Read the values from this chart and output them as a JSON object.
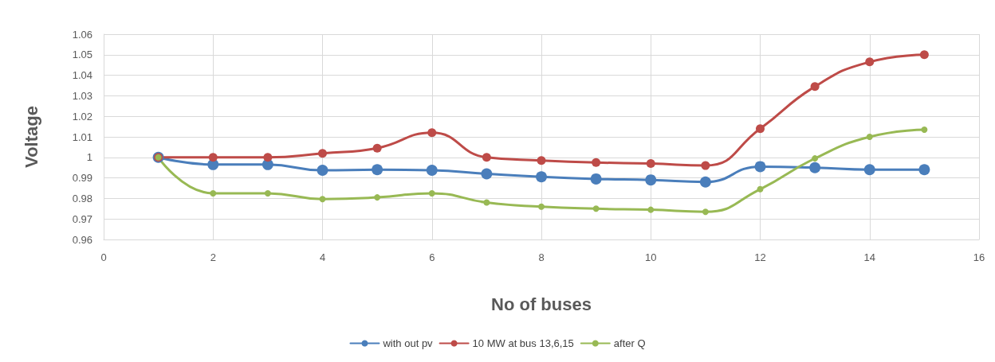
{
  "chart_data": {
    "type": "line",
    "xlabel": "No of buses",
    "ylabel": "Voltage",
    "x": [
      1,
      2,
      3,
      4,
      5,
      6,
      7,
      8,
      9,
      10,
      11,
      12,
      13,
      14,
      15
    ],
    "xlim": [
      0,
      16
    ],
    "xticks": [
      0,
      2,
      4,
      6,
      8,
      10,
      12,
      14,
      16
    ],
    "ylim": [
      0.96,
      1.06
    ],
    "yticks": [
      0.96,
      0.97,
      0.98,
      0.99,
      1,
      1.01,
      1.02,
      1.03,
      1.04,
      1.05,
      1.06
    ],
    "grid": true,
    "legend": "bottom",
    "marker": "circle",
    "line_style": "solid",
    "series": [
      {
        "name": "with out pv",
        "color": "#4a7ebb",
        "values": [
          1.0,
          0.9965,
          0.9965,
          0.9937,
          0.994,
          0.9937,
          0.992,
          0.9905,
          0.9895,
          0.989,
          0.988,
          0.9955,
          0.995,
          0.994,
          0.994
        ]
      },
      {
        "name": "10 MW at bus 13,6,15",
        "color": "#be4b48",
        "values": [
          1.0,
          1.0,
          1.0,
          1.002,
          1.0045,
          1.012,
          1.0,
          0.9985,
          0.9975,
          0.997,
          0.996,
          1.014,
          1.0345,
          1.0465,
          1.05
        ]
      },
      {
        "name": "after Q",
        "color": "#98b954",
        "values": [
          1.0,
          0.9825,
          0.9825,
          0.9797,
          0.9805,
          0.9825,
          0.978,
          0.976,
          0.975,
          0.9745,
          0.9735,
          0.9845,
          0.9995,
          1.01,
          1.0135
        ]
      }
    ]
  }
}
